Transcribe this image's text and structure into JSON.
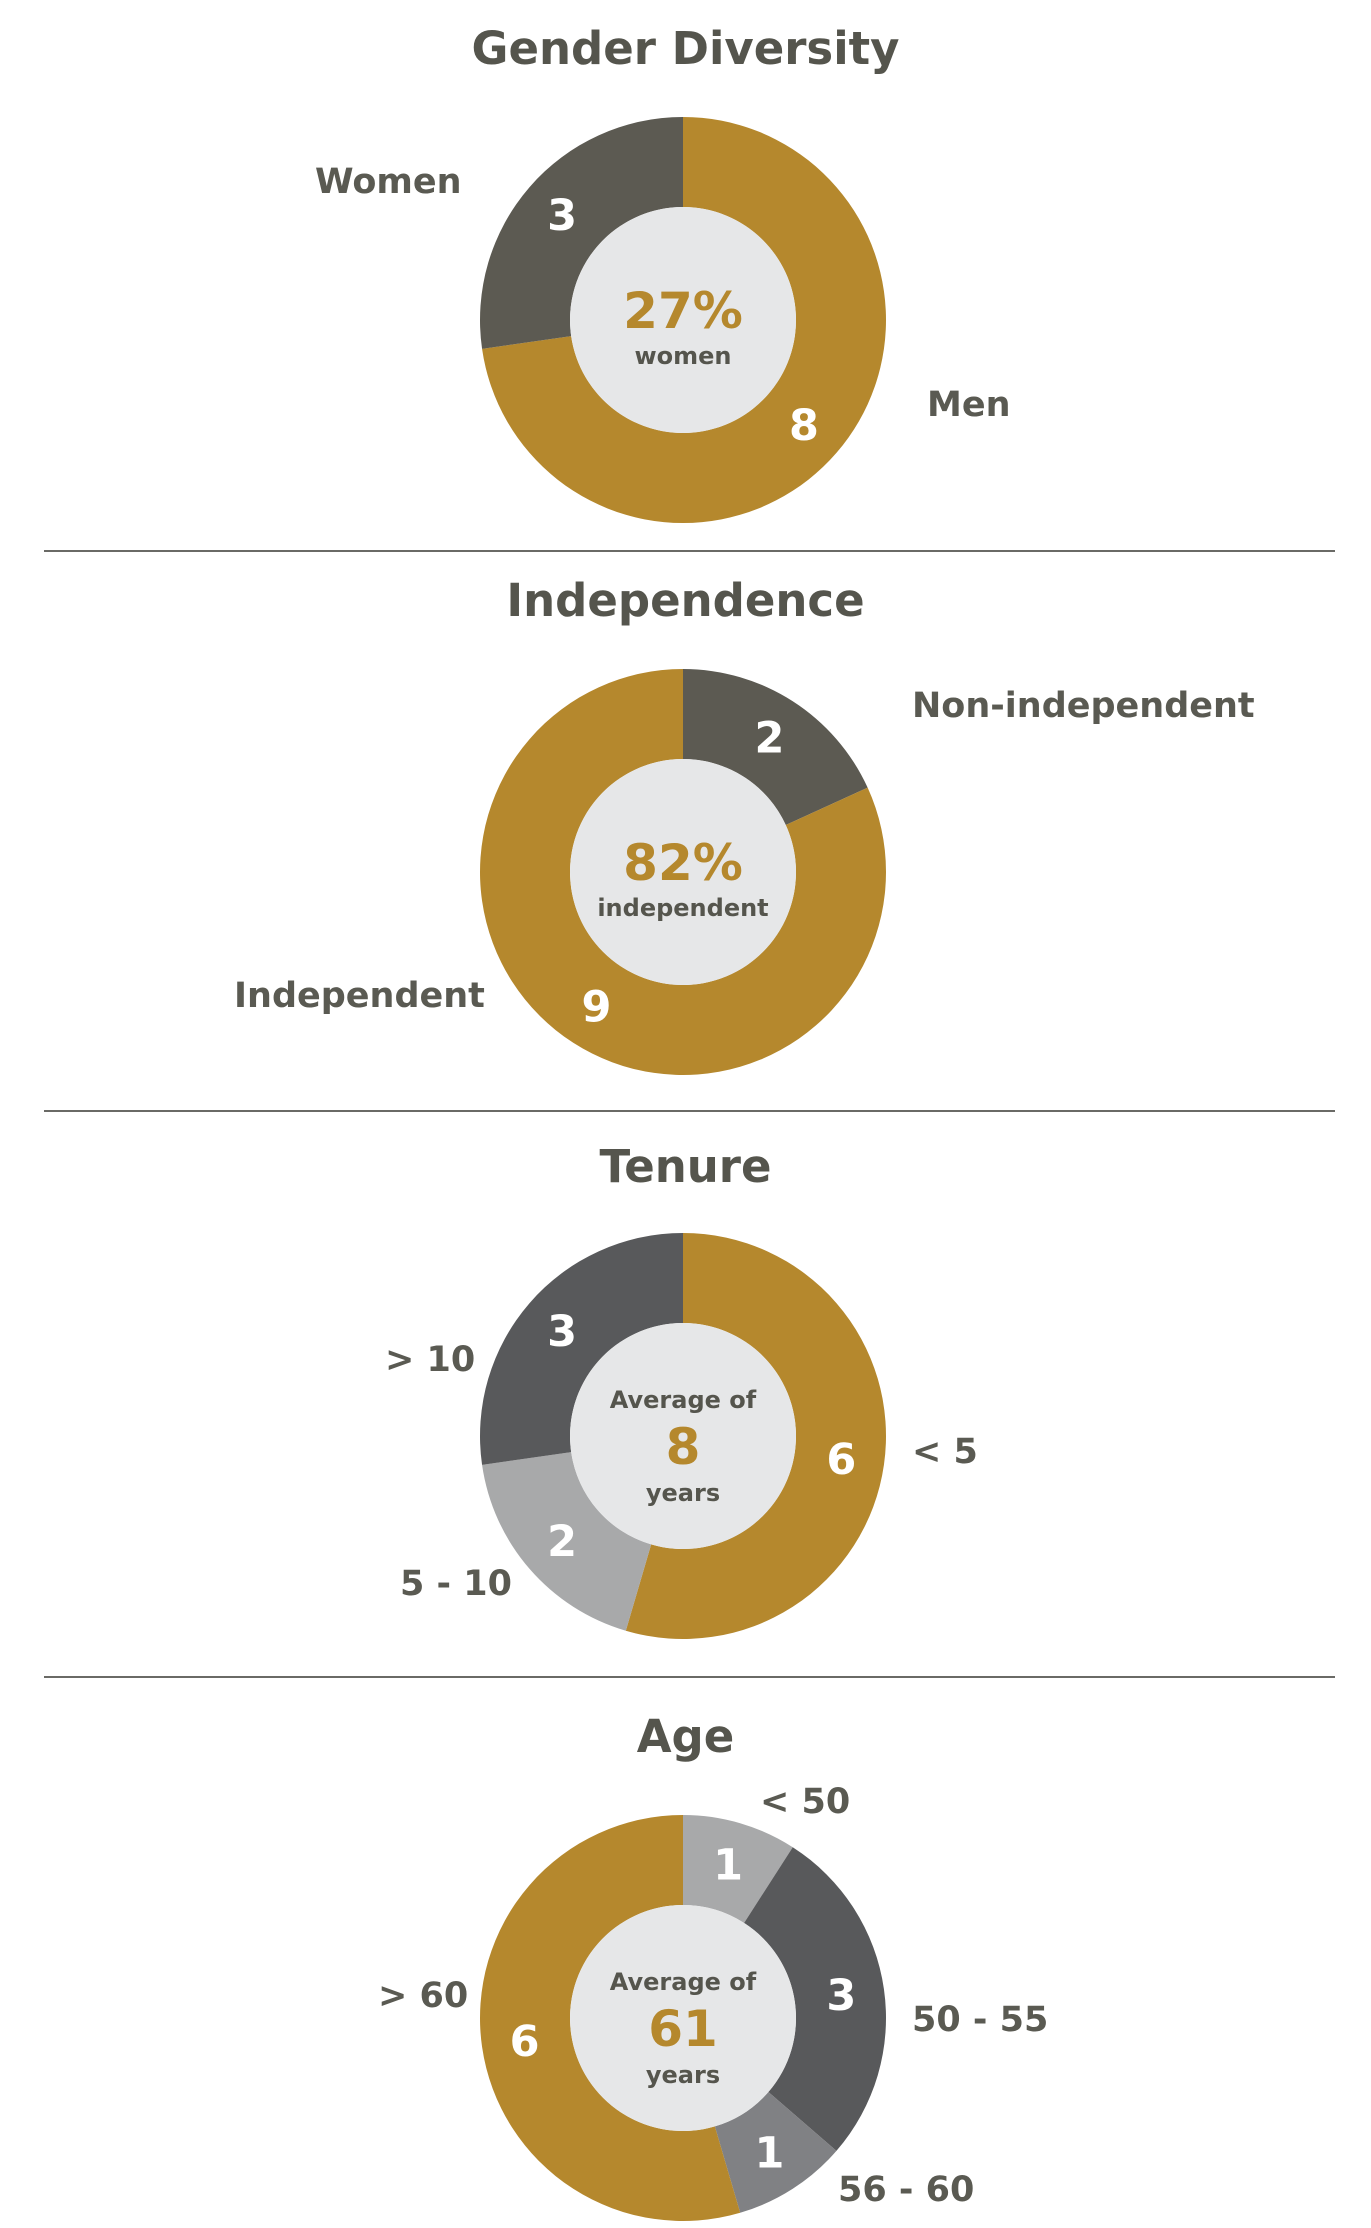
{
  "chart_data": [
    {
      "type": "pie",
      "title": "Gender Diversity",
      "categories": [
        "Men",
        "Women"
      ],
      "values": [
        8,
        3
      ],
      "colors": [
        "#b5882d",
        "#5c5a52"
      ],
      "center": {
        "big": "27%",
        "small": "women"
      }
    },
    {
      "type": "pie",
      "title": "Independence",
      "categories": [
        "Non-independent",
        "Independent"
      ],
      "values": [
        2,
        9
      ],
      "colors": [
        "#5c5a52",
        "#b5882d"
      ],
      "center": {
        "big": "82%",
        "small": "independent"
      }
    },
    {
      "type": "pie",
      "title": "Tenure",
      "categories": [
        "< 5",
        "5 - 10",
        "> 10"
      ],
      "values": [
        6,
        2,
        3
      ],
      "colors": [
        "#b5882d",
        "#a8a9aa",
        "#58595b"
      ],
      "center": {
        "top": "Average of",
        "big": "8",
        "bottom": "years"
      }
    },
    {
      "type": "pie",
      "title": "Age",
      "categories": [
        "< 50",
        "50 - 55",
        "56 - 60",
        "> 60"
      ],
      "values": [
        1,
        3,
        1,
        6
      ],
      "colors": [
        "#a8a9aa",
        "#58595b",
        "#808184",
        "#b5882d"
      ],
      "center": {
        "top": "Average of",
        "big": "61",
        "bottom": "years"
      }
    }
  ]
}
